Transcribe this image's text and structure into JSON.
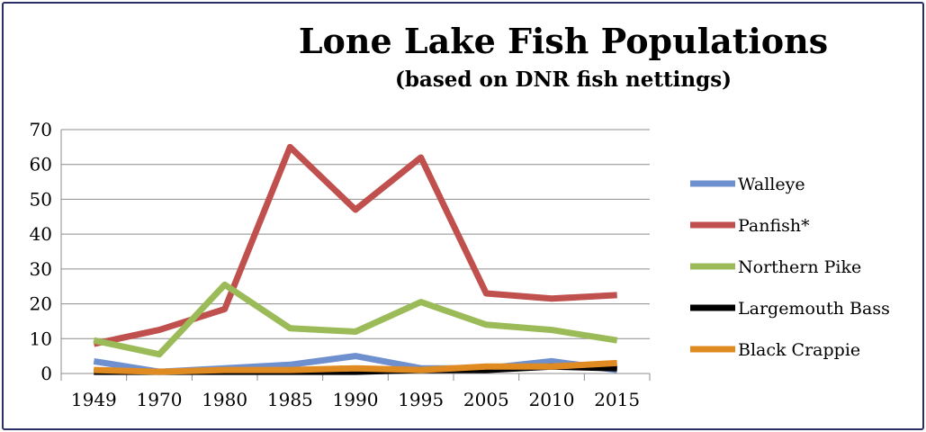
{
  "chart_data": {
    "type": "line",
    "title": "Lone Lake Fish Populations",
    "subtitle": "(based on DNR fish nettings)",
    "xlabel": "",
    "ylabel": "",
    "categories": [
      "1949",
      "1970",
      "1980",
      "1985",
      "1990",
      "1995",
      "2005",
      "2010",
      "2015"
    ],
    "ylim": [
      0,
      70
    ],
    "yticks": [
      0,
      10,
      20,
      30,
      40,
      50,
      60,
      70
    ],
    "grid": true,
    "legend_position": "right",
    "series": [
      {
        "name": "Walleye",
        "color": "#6f90cf",
        "values": [
          3.5,
          0.5,
          1.5,
          2.5,
          5,
          1.5,
          1.5,
          3.5,
          1
        ]
      },
      {
        "name": "Panfish*",
        "color": "#c0504d",
        "values": [
          8.5,
          12.5,
          18.5,
          65,
          47,
          62,
          23,
          21.5,
          22.5
        ]
      },
      {
        "name": "Northern Pike",
        "color": "#9bbb59",
        "values": [
          9.5,
          5.5,
          25.5,
          13,
          12,
          20.5,
          14,
          12.5,
          9.5
        ]
      },
      {
        "name": "Largemouth Bass",
        "color": "#000000",
        "values": [
          0.5,
          0.5,
          0.5,
          0.5,
          0.5,
          1,
          1,
          2,
          1.5
        ]
      },
      {
        "name": "Black Crappie",
        "color": "#e08b22",
        "values": [
          1,
          0.5,
          1,
          1,
          1.5,
          1,
          2,
          2,
          3
        ]
      }
    ]
  }
}
